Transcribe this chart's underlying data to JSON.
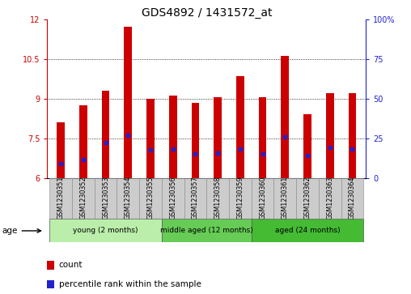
{
  "title": "GDS4892 / 1431572_at",
  "samples": [
    "GSM1230351",
    "GSM1230352",
    "GSM1230353",
    "GSM1230354",
    "GSM1230355",
    "GSM1230356",
    "GSM1230357",
    "GSM1230358",
    "GSM1230359",
    "GSM1230360",
    "GSM1230361",
    "GSM1230362",
    "GSM1230363",
    "GSM1230364"
  ],
  "count_values": [
    8.1,
    8.75,
    9.3,
    11.7,
    9.0,
    9.1,
    8.85,
    9.05,
    9.85,
    9.05,
    10.6,
    8.4,
    9.2,
    9.2
  ],
  "percentile_values": [
    6.55,
    6.7,
    7.35,
    7.6,
    7.05,
    7.1,
    6.9,
    6.95,
    7.1,
    6.9,
    7.55,
    6.85,
    7.15,
    7.1
  ],
  "ymin": 6,
  "ymax": 12,
  "yticks_left": [
    6,
    7.5,
    9,
    10.5,
    12
  ],
  "yticks_right_vals": [
    0,
    25,
    50,
    75,
    100
  ],
  "bar_color": "#cc0000",
  "dot_color": "#2222cc",
  "grid_color": "#000000",
  "bg_xtick": "#cccccc",
  "groups": [
    {
      "label": "young (2 months)",
      "start": 0,
      "end": 5,
      "color": "#bbeeaa"
    },
    {
      "label": "middle aged (12 months)",
      "start": 5,
      "end": 9,
      "color": "#66cc55"
    },
    {
      "label": "aged (24 months)",
      "start": 9,
      "end": 14,
      "color": "#44bb33"
    }
  ],
  "age_label": "age",
  "legend_count": "count",
  "legend_percentile": "percentile rank within the sample",
  "bar_width": 0.35,
  "title_fontsize": 10,
  "tick_fontsize": 7,
  "label_fontsize": 7.5
}
